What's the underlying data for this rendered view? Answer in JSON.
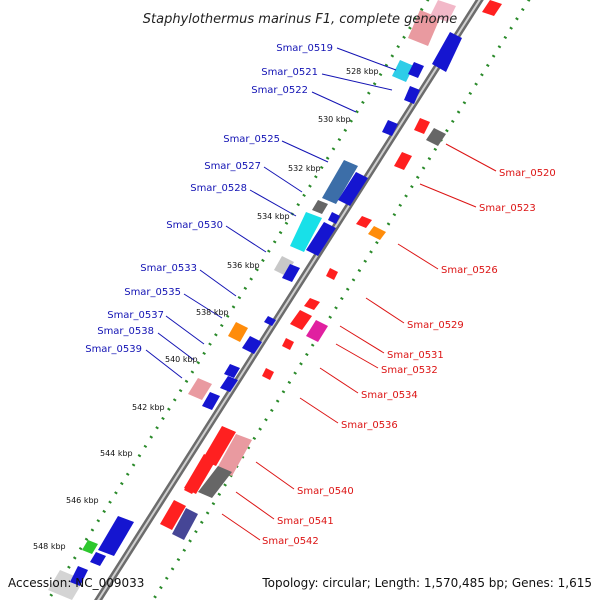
{
  "title": "Staphylothermus marinus F1, complete genome",
  "footer": {
    "accession": "Accession: NC_009033",
    "summary": "Topology: circular; Length: 1,570,485 bp; Genes: 1,615"
  },
  "colors": {
    "forward_label": "#1414b4",
    "reverse_label": "#dc1414",
    "backbone": "#8a8a8a",
    "dots": "#2a8a2a"
  },
  "ticks": [
    "528 kbp",
    "530 kbp",
    "532 kbp",
    "534 kbp",
    "536 kbp",
    "538 kbp",
    "540 kbp",
    "542 kbp",
    "544 kbp",
    "546 kbp",
    "548 kbp"
  ],
  "forward_genes": [
    "Smar_0519",
    "Smar_0521",
    "Smar_0522",
    "Smar_0525",
    "Smar_0527",
    "Smar_0528",
    "Smar_0530",
    "Smar_0533",
    "Smar_0535",
    "Smar_0537",
    "Smar_0538",
    "Smar_0539"
  ],
  "reverse_genes": [
    "Smar_0520",
    "Smar_0523",
    "Smar_0526",
    "Smar_0529",
    "Smar_0531",
    "Smar_0532",
    "Smar_0534",
    "Smar_0536",
    "Smar_0540",
    "Smar_0541",
    "Smar_0542"
  ]
}
